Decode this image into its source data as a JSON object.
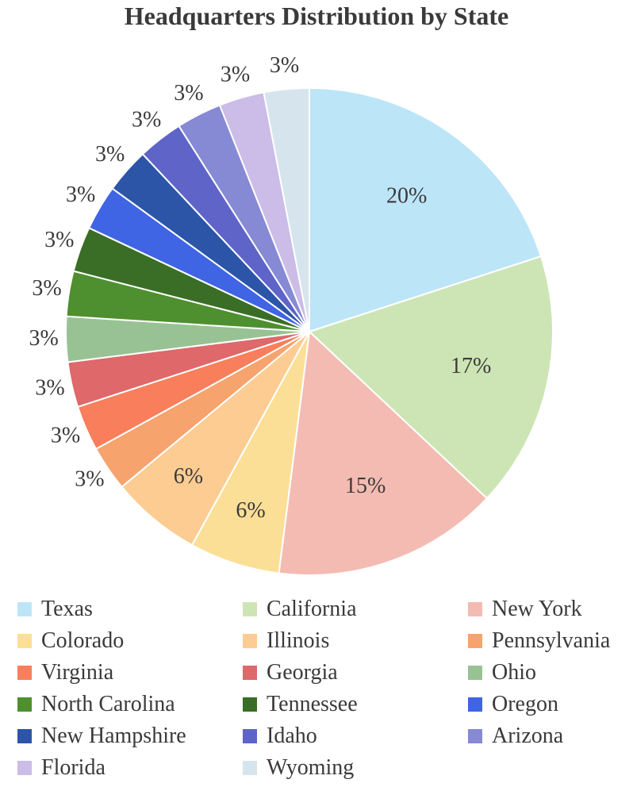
{
  "chart_data": {
    "type": "pie",
    "title": "Headquarters Distribution by State",
    "slices": [
      {
        "label": "Texas",
        "value": 20,
        "display": "20%",
        "color": "#BDE5F8"
      },
      {
        "label": "California",
        "value": 17,
        "display": "17%",
        "color": "#CDE5B4"
      },
      {
        "label": "New York",
        "value": 15,
        "display": "15%",
        "color": "#F4BBB3"
      },
      {
        "label": "Colorado",
        "value": 6,
        "display": "6%",
        "color": "#FBDF96"
      },
      {
        "label": "Illinois",
        "value": 6,
        "display": "6%",
        "color": "#FDCC93"
      },
      {
        "label": "Pennsylvania",
        "value": 3,
        "display": "3%",
        "color": "#F6A36E"
      },
      {
        "label": "Virginia",
        "value": 3,
        "display": "3%",
        "color": "#F97E5C"
      },
      {
        "label": "Georgia",
        "value": 3,
        "display": "3%",
        "color": "#DE686A"
      },
      {
        "label": "Ohio",
        "value": 3,
        "display": "3%",
        "color": "#98C294"
      },
      {
        "label": "North Carolina",
        "value": 3,
        "display": "3%",
        "color": "#4E8F2F"
      },
      {
        "label": "Tennessee",
        "value": 3,
        "display": "3%",
        "color": "#3A6E26"
      },
      {
        "label": "Oregon",
        "value": 3,
        "display": "3%",
        "color": "#3F64E4"
      },
      {
        "label": "New Hampshire",
        "value": 3,
        "display": "3%",
        "color": "#2C55A8"
      },
      {
        "label": "Idaho",
        "value": 3,
        "display": "3%",
        "color": "#5E64C8"
      },
      {
        "label": "Arizona",
        "value": 3,
        "display": "3%",
        "color": "#8689D4"
      },
      {
        "label": "Florida",
        "value": 3,
        "display": "3%",
        "color": "#CBBCE8"
      },
      {
        "label": "Wyoming",
        "value": 3,
        "display": "3%",
        "color": "#D6E4EE"
      }
    ],
    "legend_position": "bottom"
  }
}
